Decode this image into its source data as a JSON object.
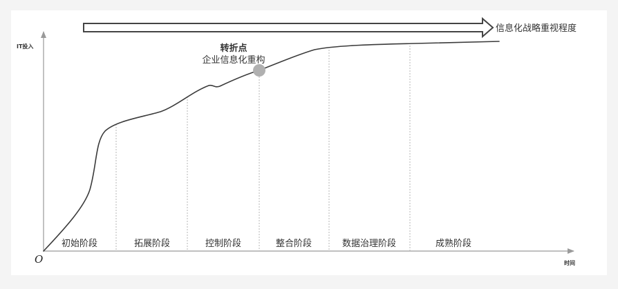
{
  "diagram": {
    "arrow_label": "信息化战略重视程度",
    "y_axis_label": "IT投入",
    "x_axis_label": "时间",
    "origin_label": "O",
    "turning_point": {
      "title": "转折点",
      "subtitle": "企业信息化重构"
    },
    "stages": [
      {
        "label": "初始阶段"
      },
      {
        "label": "拓展阶段"
      },
      {
        "label": "控制阶段"
      },
      {
        "label": "整合阶段"
      },
      {
        "label": "数据治理阶段"
      },
      {
        "label": "成熟阶段"
      }
    ],
    "colors": {
      "curve": "#3a3a3a",
      "axis": "#9a9a9a",
      "divider": "#b5b5b5",
      "marker": "#b0b0b0",
      "text": "#333333"
    }
  }
}
